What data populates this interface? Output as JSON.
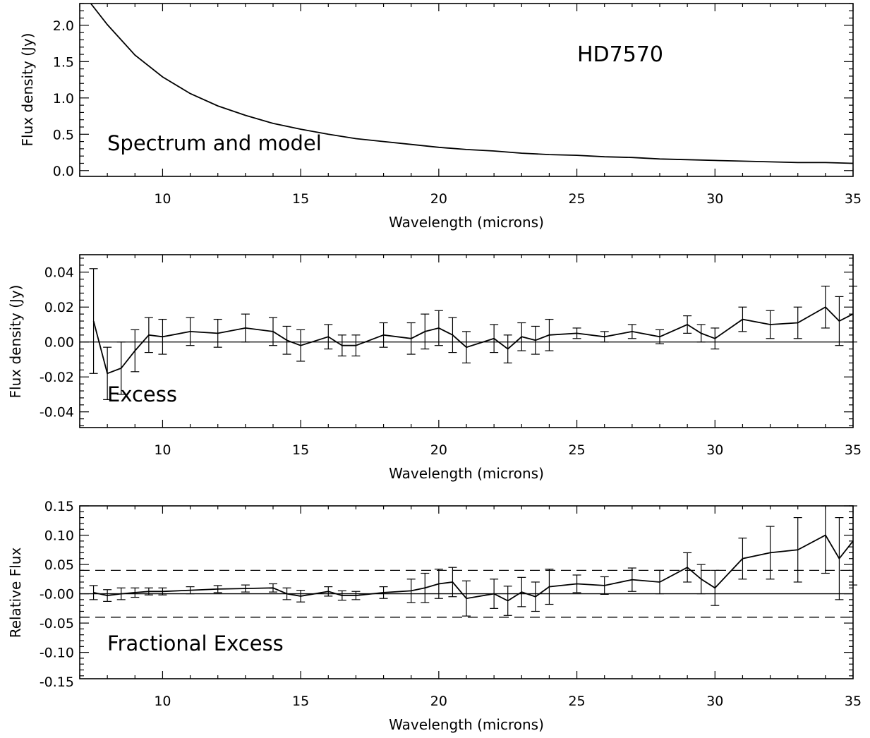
{
  "figure": {
    "object_name": "HD7570"
  },
  "chart_data": [
    {
      "type": "line",
      "panel_label": "Spectrum and model",
      "object_name": "HD7570",
      "xlabel": "Wavelength (microns)",
      "ylabel": "Flux density (Jy)",
      "xlim": [
        7.0,
        35.0
      ],
      "ylim": [
        -0.08,
        2.3
      ],
      "xticks": [
        10,
        15,
        20,
        25,
        30,
        35
      ],
      "yticks": [
        0.0,
        0.5,
        1.0,
        1.5,
        2.0
      ],
      "xtick_labels": [
        "10",
        "15",
        "20",
        "25",
        "30",
        "35"
      ],
      "ytick_labels": [
        "0.0",
        "0.5",
        "1.0",
        "1.5",
        "2.0"
      ],
      "series": [
        {
          "x": [
            7.4,
            8.0,
            9.0,
            10.0,
            11.0,
            12.0,
            13.0,
            14.0,
            15.0,
            16.0,
            17.0,
            18.0,
            19.0,
            20.0,
            21.0,
            22.0,
            23.0,
            24.0,
            25.0,
            26.0,
            27.0,
            28.0,
            29.0,
            30.0,
            31.0,
            32.0,
            33.0,
            34.0,
            35.0
          ],
          "y": [
            2.3,
            2.01,
            1.59,
            1.29,
            1.06,
            0.89,
            0.76,
            0.65,
            0.57,
            0.5,
            0.44,
            0.4,
            0.36,
            0.32,
            0.29,
            0.27,
            0.24,
            0.22,
            0.21,
            0.19,
            0.18,
            0.16,
            0.15,
            0.14,
            0.13,
            0.12,
            0.11,
            0.11,
            0.1
          ]
        }
      ]
    },
    {
      "type": "line",
      "panel_label": "Excess",
      "xlabel": "Wavelength (microns)",
      "ylabel": "Flux density (Jy)",
      "xlim": [
        7.0,
        35.0
      ],
      "ylim": [
        -0.049,
        0.05
      ],
      "xticks": [
        10,
        15,
        20,
        25,
        30,
        35
      ],
      "yticks": [
        -0.04,
        -0.02,
        0.0,
        0.02,
        0.04
      ],
      "xtick_labels": [
        "10",
        "15",
        "20",
        "25",
        "30",
        "35"
      ],
      "ytick_labels": [
        "-0.04",
        "-0.02",
        "0.00",
        "0.02",
        "0.04"
      ],
      "zero_line": 0.0,
      "series": [
        {
          "x": [
            7.5,
            8.0,
            8.5,
            9.0,
            9.5,
            10.0,
            11.0,
            12.0,
            13.0,
            14.0,
            14.5,
            15.0,
            16.0,
            16.5,
            17.0,
            18.0,
            19.0,
            19.5,
            20.0,
            20.5,
            21.0,
            22.0,
            22.5,
            23.0,
            23.5,
            24.0,
            25.0,
            26.0,
            27.0,
            28.0,
            29.0,
            29.5,
            30.0,
            31.0,
            32.0,
            33.0,
            34.0,
            34.5,
            35.0
          ],
          "y": [
            0.012,
            -0.018,
            -0.015,
            -0.005,
            0.004,
            0.003,
            0.006,
            0.005,
            0.008,
            0.006,
            0.001,
            -0.002,
            0.003,
            -0.002,
            -0.002,
            0.004,
            0.002,
            0.006,
            0.008,
            0.004,
            -0.003,
            0.002,
            -0.004,
            0.003,
            0.001,
            0.004,
            0.005,
            0.003,
            0.006,
            0.003,
            0.01,
            0.005,
            0.002,
            0.013,
            0.01,
            0.011,
            0.02,
            0.012,
            0.016
          ],
          "yerr": [
            0.03,
            0.015,
            0.015,
            0.012,
            0.01,
            0.01,
            0.008,
            0.008,
            0.008,
            0.008,
            0.008,
            0.009,
            0.007,
            0.006,
            0.006,
            0.007,
            0.009,
            0.01,
            0.01,
            0.01,
            0.009,
            0.008,
            0.008,
            0.008,
            0.008,
            0.009,
            0.003,
            0.003,
            0.004,
            0.004,
            0.005,
            0.005,
            0.006,
            0.007,
            0.008,
            0.009,
            0.012,
            0.014,
            0.016
          ]
        }
      ]
    },
    {
      "type": "line",
      "panel_label": "Fractional Excess",
      "xlabel": "Wavelength (microns)",
      "ylabel": "Relative Flux",
      "xlim": [
        7.0,
        35.0
      ],
      "ylim": [
        -0.145,
        0.15
      ],
      "xticks": [
        10,
        15,
        20,
        25,
        30,
        35
      ],
      "yticks": [
        -0.15,
        -0.1,
        -0.05,
        0.0,
        0.05,
        0.1,
        0.15
      ],
      "xtick_labels": [
        "10",
        "15",
        "20",
        "25",
        "30",
        "35"
      ],
      "ytick_labels": [
        "-0.15",
        "-0.10",
        "-0.05",
        "-0.00",
        "0.05",
        "0.10",
        "0.15"
      ],
      "zero_line": 0.0,
      "dashed_lines": [
        0.04,
        -0.04
      ],
      "series": [
        {
          "x": [
            7.5,
            8.0,
            8.5,
            9.0,
            9.5,
            10.0,
            11.0,
            12.0,
            13.0,
            14.0,
            14.5,
            15.0,
            16.0,
            16.5,
            17.0,
            18.0,
            19.0,
            19.5,
            20.0,
            20.5,
            21.0,
            22.0,
            22.5,
            23.0,
            23.5,
            24.0,
            25.0,
            26.0,
            27.0,
            28.0,
            29.0,
            29.5,
            30.0,
            31.0,
            32.0,
            33.0,
            34.0,
            34.5,
            35.0
          ],
          "y": [
            0.002,
            -0.003,
            0.0,
            0.002,
            0.004,
            0.004,
            0.006,
            0.008,
            0.009,
            0.01,
            0.0,
            -0.004,
            0.004,
            -0.003,
            -0.003,
            0.002,
            0.005,
            0.01,
            0.017,
            0.02,
            -0.008,
            0.0,
            -0.012,
            0.003,
            -0.005,
            0.012,
            0.017,
            0.014,
            0.024,
            0.02,
            0.045,
            0.025,
            0.01,
            0.06,
            0.07,
            0.075,
            0.1,
            0.06,
            0.09
          ],
          "yerr": [
            0.012,
            0.01,
            0.01,
            0.008,
            0.006,
            0.006,
            0.006,
            0.006,
            0.006,
            0.007,
            0.01,
            0.01,
            0.008,
            0.008,
            0.007,
            0.01,
            0.02,
            0.025,
            0.025,
            0.025,
            0.03,
            0.025,
            0.025,
            0.025,
            0.025,
            0.03,
            0.015,
            0.015,
            0.02,
            0.02,
            0.025,
            0.025,
            0.03,
            0.035,
            0.045,
            0.055,
            0.065,
            0.07,
            0.075
          ]
        }
      ]
    }
  ]
}
